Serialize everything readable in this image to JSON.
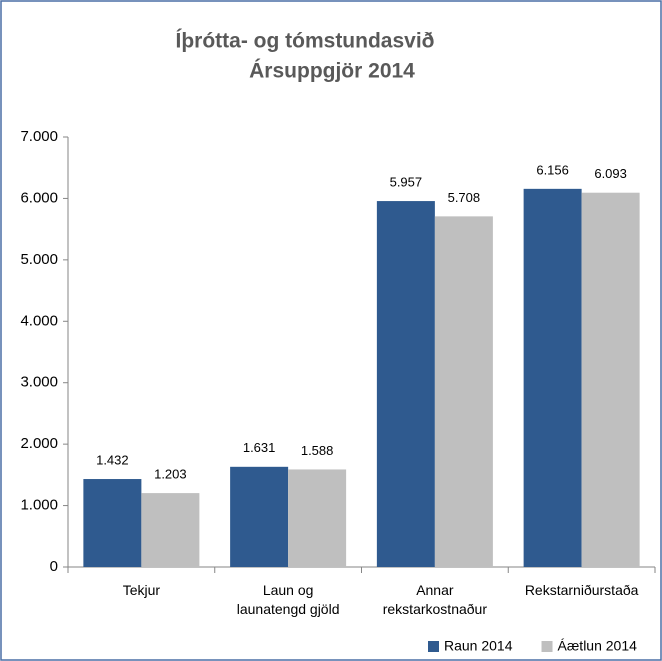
{
  "chart_data": {
    "type": "bar",
    "title": [
      "Íþrótta- og tómstundasvið",
      "Ársuppgjör 2014"
    ],
    "categories": [
      "Tekjur",
      "Laun og launatengd gjöld",
      "Annar rekstarkostnaður",
      "Rekstarniðurstaða"
    ],
    "series": [
      {
        "name": "Raun 2014",
        "color": "#2f5a8f",
        "values": [
          1432,
          1631,
          5957,
          6156
        ],
        "value_labels": [
          "1.432",
          "1.631",
          "5.957",
          "6.156"
        ]
      },
      {
        "name": "Áætlun 2014",
        "color": "#bfbfbf",
        "values": [
          1203,
          1588,
          5708,
          6093
        ],
        "value_labels": [
          "1.203",
          "1.588",
          "5.708",
          "6.093"
        ]
      }
    ],
    "ylim": [
      0,
      7000
    ],
    "yticks": [
      {
        "value": 0,
        "label": "0"
      },
      {
        "value": 1000,
        "label": "1.000"
      },
      {
        "value": 2000,
        "label": "2.000"
      },
      {
        "value": 3000,
        "label": "3.000"
      },
      {
        "value": 4000,
        "label": "4.000"
      },
      {
        "value": 5000,
        "label": "5.000"
      },
      {
        "value": 6000,
        "label": "6.000"
      },
      {
        "value": 7000,
        "label": "7.000"
      }
    ],
    "grid": false,
    "legend": "bottom-right"
  }
}
